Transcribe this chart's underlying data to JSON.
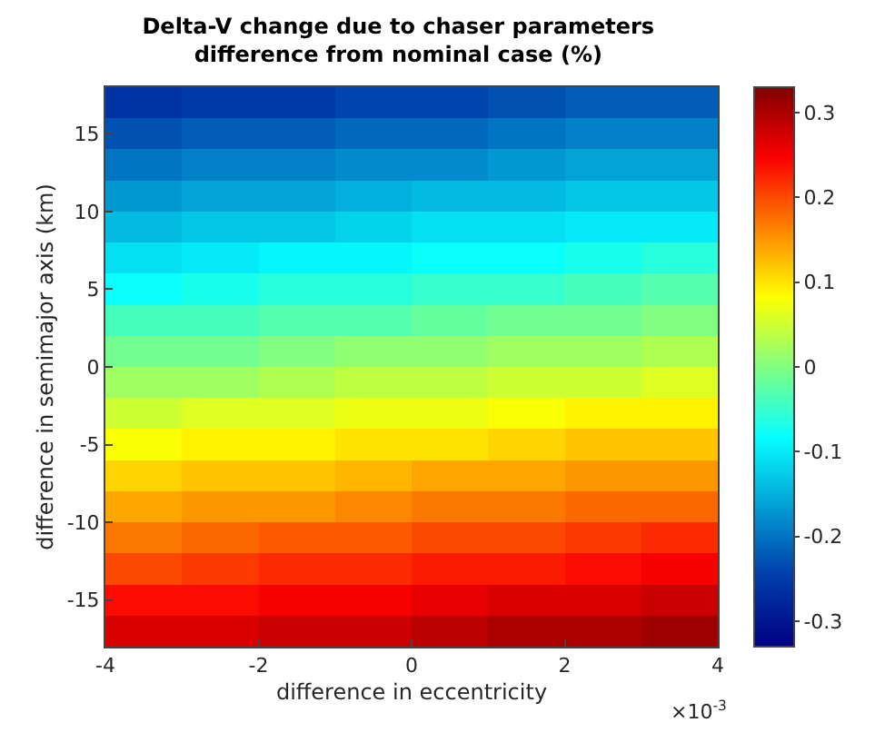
{
  "chart_data": {
    "type": "heatmap",
    "title": "Delta-V change due to chaser parameters\ndifference from nominal case (%)",
    "xlabel": "difference in eccentricity",
    "ylabel": "difference in semimajor axis (km)",
    "annotations": [
      "×10$^{-3}$"
    ],
    "x": [
      -3.5,
      -2.5,
      -1.5,
      -0.5,
      0.5,
      1.5,
      2.5,
      3.5
    ],
    "y": [
      17,
      15,
      13,
      11,
      9,
      7,
      5,
      3,
      1,
      -1,
      -3,
      -5,
      -7,
      -9,
      -11,
      -13,
      -15,
      -17
    ],
    "cells": [
      [
        -0.26,
        -0.25,
        -0.25,
        -0.24,
        -0.24,
        -0.23,
        -0.22,
        -0.22
      ],
      [
        -0.23,
        -0.22,
        -0.22,
        -0.21,
        -0.21,
        -0.2,
        -0.19,
        -0.19
      ],
      [
        -0.2,
        -0.19,
        -0.19,
        -0.18,
        -0.18,
        -0.17,
        -0.16,
        -0.16
      ],
      [
        -0.17,
        -0.16,
        -0.16,
        -0.15,
        -0.14,
        -0.14,
        -0.13,
        -0.13
      ],
      [
        -0.14,
        -0.13,
        -0.13,
        -0.12,
        -0.11,
        -0.11,
        -0.1,
        -0.1
      ],
      [
        -0.11,
        -0.1,
        -0.09,
        -0.09,
        -0.08,
        -0.08,
        -0.07,
        -0.06
      ],
      [
        -0.08,
        -0.07,
        -0.06,
        -0.06,
        -0.05,
        -0.05,
        -0.04,
        -0.03
      ],
      [
        -0.04,
        -0.04,
        -0.03,
        -0.03,
        -0.02,
        -0.01,
        -0.01,
        0.0
      ],
      [
        -0.01,
        -0.01,
        0.0,
        0.01,
        0.01,
        0.02,
        0.02,
        0.03
      ],
      [
        0.02,
        0.02,
        0.03,
        0.04,
        0.04,
        0.05,
        0.05,
        0.06
      ],
      [
        0.05,
        0.06,
        0.06,
        0.07,
        0.07,
        0.08,
        0.09,
        0.09
      ],
      [
        0.08,
        0.09,
        0.09,
        0.1,
        0.1,
        0.11,
        0.12,
        0.12
      ],
      [
        0.11,
        0.12,
        0.12,
        0.13,
        0.14,
        0.14,
        0.15,
        0.15
      ],
      [
        0.14,
        0.15,
        0.15,
        0.16,
        0.17,
        0.17,
        0.18,
        0.18
      ],
      [
        0.17,
        0.18,
        0.19,
        0.19,
        0.2,
        0.2,
        0.21,
        0.22
      ],
      [
        0.2,
        0.21,
        0.22,
        0.22,
        0.23,
        0.23,
        0.24,
        0.25
      ],
      [
        0.24,
        0.24,
        0.25,
        0.25,
        0.26,
        0.27,
        0.27,
        0.28
      ],
      [
        0.27,
        0.27,
        0.28,
        0.28,
        0.29,
        0.3,
        0.3,
        0.31
      ]
    ],
    "xlim": [
      -4,
      4
    ],
    "xticks": [
      -4,
      -2,
      0,
      2,
      4
    ],
    "ylim": [
      -18,
      18
    ],
    "yticks": [
      -15,
      -10,
      -5,
      0,
      5,
      10,
      15
    ],
    "clim": [
      -0.33,
      0.33
    ],
    "cticks": [
      -0.3,
      -0.2,
      -0.1,
      0,
      0.1,
      0.2,
      0.3
    ]
  }
}
